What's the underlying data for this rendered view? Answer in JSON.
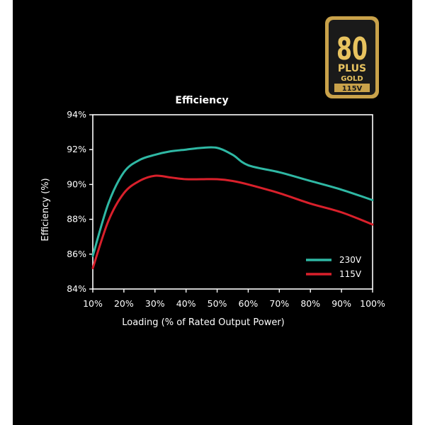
{
  "badge": {
    "number": "80",
    "plus": "PLUS",
    "tier": "GOLD",
    "voltage": "115V",
    "colors": {
      "gold": "#c9a24a",
      "dark": "#1a1a1a"
    }
  },
  "chart_data": {
    "type": "line",
    "title": "Efficiency",
    "xlabel": "Loading (% of Rated Output Power)",
    "ylabel": "Efficiency (%)",
    "x": [
      10,
      15,
      20,
      25,
      30,
      35,
      40,
      45,
      50,
      55,
      60,
      70,
      80,
      90,
      100
    ],
    "xticks": [
      "10%",
      "20%",
      "30%",
      "40%",
      "50%",
      "60%",
      "70%",
      "80%",
      "90%",
      "100%"
    ],
    "xlim": [
      10,
      100
    ],
    "yticks": [
      "84%",
      "86%",
      "88%",
      "90%",
      "92%",
      "94%"
    ],
    "ylim": [
      84,
      94
    ],
    "grid": false,
    "legend_position": "bottom-right",
    "series": [
      {
        "name": "230V",
        "color": "#2fb8a4",
        "values": [
          85.9,
          88.9,
          90.7,
          91.4,
          91.7,
          91.9,
          92.0,
          92.1,
          92.1,
          91.7,
          91.1,
          90.7,
          90.2,
          89.7,
          89.1
        ]
      },
      {
        "name": "115V",
        "color": "#d9202b",
        "values": [
          85.2,
          87.9,
          89.5,
          90.2,
          90.5,
          90.4,
          90.3,
          90.3,
          90.3,
          90.2,
          90.0,
          89.5,
          88.9,
          88.4,
          87.7
        ]
      }
    ]
  }
}
